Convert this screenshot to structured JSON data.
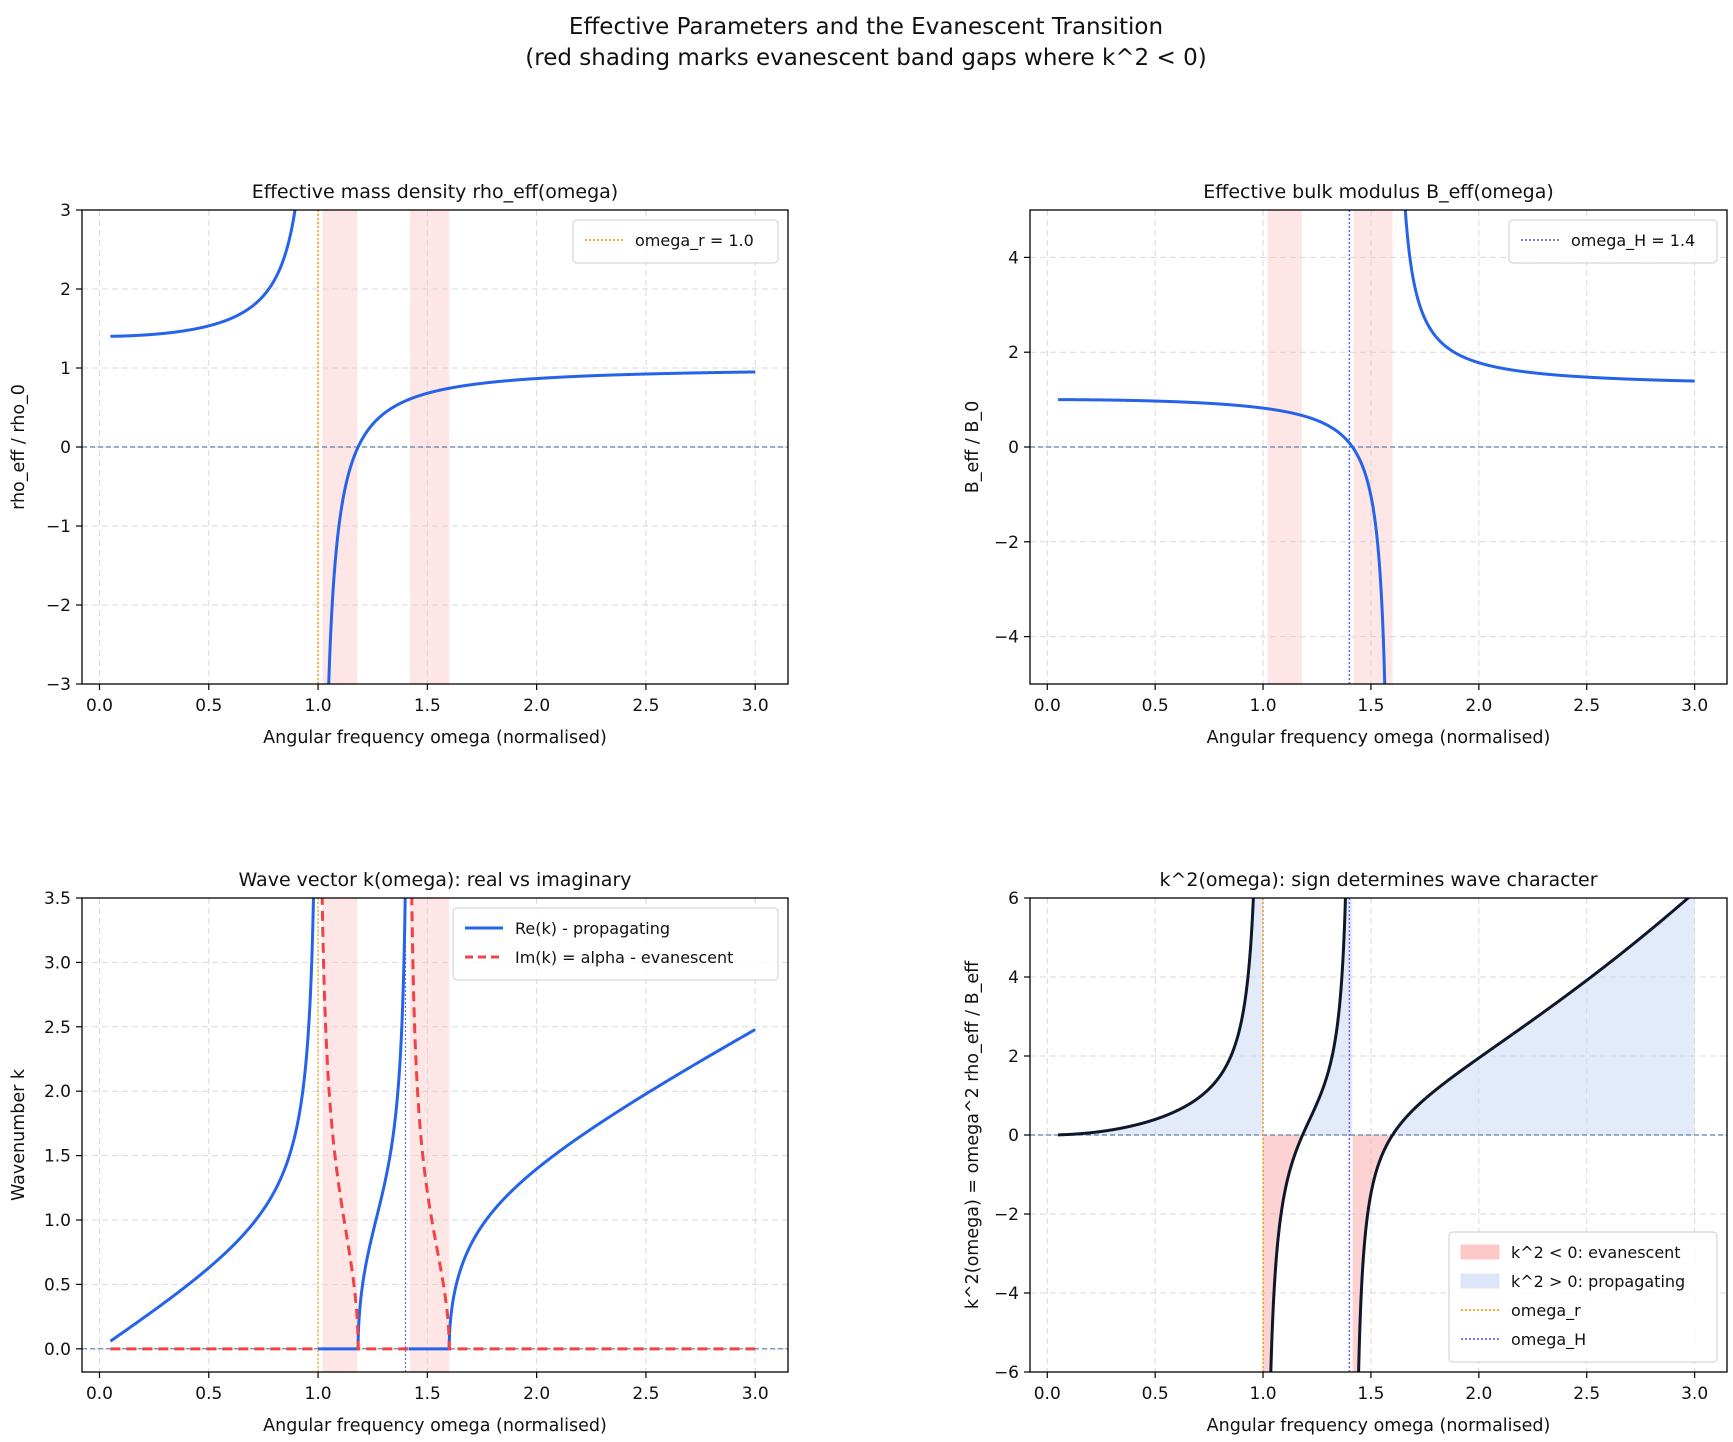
{
  "figure": {
    "title_line1": "Effective Parameters and the Evanescent Transition",
    "title_line2": "(red shading marks evanescent band gaps where k^2 < 0)"
  },
  "colors": {
    "curve_blue": "#2563eb",
    "curve_red": "#ef4444",
    "curve_dark": "#0f172a",
    "omega_r": "#f59e0b",
    "omega_H": "#6366f1",
    "zero_line": "#5b7fa6",
    "gap_shade": "#fee2e2",
    "neg_fill": "#fca5a5",
    "pos_fill": "#c7d7f5"
  },
  "chart_data": [
    {
      "id": "rho",
      "type": "line",
      "title": "Effective mass density rho_eff(omega)",
      "xlabel": "Angular frequency omega (normalised)",
      "ylabel": "rho_eff / rho_0",
      "xlim": [
        -0.08,
        3.15
      ],
      "ylim": [
        -3,
        3
      ],
      "xticks": [
        0,
        0.5,
        1.0,
        1.5,
        2.0,
        2.5,
        3.0
      ],
      "xtick_labels": [
        "0.0",
        "0.5",
        "1.0",
        "1.5",
        "2.0",
        "2.5",
        "3.0"
      ],
      "yticks": [
        -3,
        -2,
        -1,
        0,
        1,
        2,
        3
      ],
      "ytick_labels": [
        "−3",
        "−2",
        "−1",
        "0",
        "1",
        "2",
        "3"
      ],
      "gap_bands": [
        [
          1.02,
          1.18
        ],
        [
          1.42,
          1.6
        ]
      ],
      "legend": [
        {
          "label": "omega_r = 1.0",
          "style": "dotted-orange"
        }
      ],
      "legend_position": "upper-right",
      "grid": true
    },
    {
      "id": "bulk",
      "type": "line",
      "title": "Effective bulk modulus B_eff(omega)",
      "xlabel": "Angular frequency omega (normalised)",
      "ylabel": "B_eff / B_0",
      "xlim": [
        -0.08,
        3.15
      ],
      "ylim": [
        -5,
        5
      ],
      "xticks": [
        0,
        0.5,
        1.0,
        1.5,
        2.0,
        2.5,
        3.0
      ],
      "xtick_labels": [
        "0.0",
        "0.5",
        "1.0",
        "1.5",
        "2.0",
        "2.5",
        "3.0"
      ],
      "yticks": [
        -4,
        -2,
        0,
        2,
        4
      ],
      "ytick_labels": [
        "−4",
        "−2",
        "0",
        "2",
        "4"
      ],
      "gap_bands": [
        [
          1.02,
          1.18
        ],
        [
          1.42,
          1.6
        ]
      ],
      "legend": [
        {
          "label": "omega_H = 1.4",
          "style": "dotted-indigo"
        }
      ],
      "legend_position": "upper-right",
      "grid": true
    },
    {
      "id": "wave",
      "type": "line",
      "title": "Wave vector k(omega): real vs imaginary",
      "xlabel": "Angular frequency omega (normalised)",
      "ylabel": "Wavenumber k",
      "xlim": [
        -0.08,
        3.15
      ],
      "ylim": [
        -0.18,
        3.5
      ],
      "xticks": [
        0,
        0.5,
        1.0,
        1.5,
        2.0,
        2.5,
        3.0
      ],
      "xtick_labels": [
        "0.0",
        "0.5",
        "1.0",
        "1.5",
        "2.0",
        "2.5",
        "3.0"
      ],
      "yticks": [
        0,
        0.5,
        1.0,
        1.5,
        2.0,
        2.5,
        3.0,
        3.5
      ],
      "ytick_labels": [
        "0.0",
        "0.5",
        "1.0",
        "1.5",
        "2.0",
        "2.5",
        "3.0",
        "3.5"
      ],
      "gap_bands": [
        [
          1.02,
          1.18
        ],
        [
          1.42,
          1.6
        ]
      ],
      "legend": [
        {
          "label": "Re(k) - propagating",
          "style": "solid-blue"
        },
        {
          "label": "Im(k) = alpha - evanescent",
          "style": "dashed-red"
        }
      ],
      "legend_position": "upper-right",
      "grid": true
    },
    {
      "id": "ksq",
      "type": "area",
      "title": "k^2(omega): sign determines wave character",
      "xlabel": "Angular frequency omega (normalised)",
      "ylabel": "k^2(omega) = omega^2 rho_eff / B_eff",
      "xlim": [
        -0.08,
        3.15
      ],
      "ylim": [
        -6,
        6
      ],
      "xticks": [
        0,
        0.5,
        1.0,
        1.5,
        2.0,
        2.5,
        3.0
      ],
      "xtick_labels": [
        "0.0",
        "0.5",
        "1.0",
        "1.5",
        "2.0",
        "2.5",
        "3.0"
      ],
      "yticks": [
        -6,
        -4,
        -2,
        0,
        2,
        4,
        6
      ],
      "ytick_labels": [
        "−6",
        "−4",
        "−2",
        "0",
        "2",
        "4",
        "6"
      ],
      "legend": [
        {
          "label": "k^2 < 0: evanescent",
          "style": "patch-red"
        },
        {
          "label": "k^2 > 0: propagating",
          "style": "patch-blue"
        },
        {
          "label": "omega_r",
          "style": "dotted-orange"
        },
        {
          "label": "omega_H",
          "style": "dotted-indigo"
        }
      ],
      "legend_position": "lower-right",
      "grid": true
    }
  ]
}
